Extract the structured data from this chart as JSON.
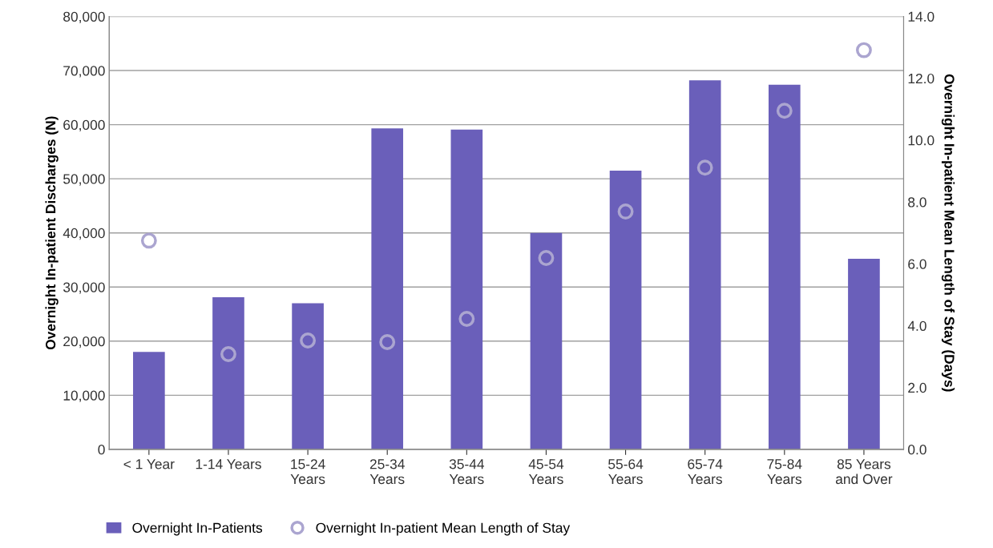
{
  "chart_data": {
    "type": "bar",
    "categories": [
      "< 1 Year",
      "1-14 Years",
      "15-24\nYears",
      "25-34\nYears",
      "35-44\nYears",
      "45-54\nYears",
      "55-64\nYears",
      "65-74\nYears",
      "75-84\nYears",
      "85 Years\nand Over"
    ],
    "ylabel": "Overnight In-patient Discharges (N)",
    "y2label": "Overnight In-patient Mean Length of Stay (Days)",
    "series": [
      {
        "name": "Overnight In-Patients",
        "color": "#6a5fba",
        "values": [
          18000,
          28100,
          27000,
          59300,
          59100,
          40000,
          51500,
          68200,
          67400,
          35200
        ]
      },
      {
        "name": "Overnight In-patient Mean Length of Stay",
        "type": "scatter",
        "axis": "y2",
        "color": "#aba5d0",
        "marker": "circle",
        "values": [
          6.75,
          3.08,
          3.52,
          3.47,
          4.22,
          6.19,
          7.69,
          9.11,
          10.95,
          12.91
        ]
      }
    ],
    "ylim": [
      0,
      80000
    ],
    "yticks": [
      {
        "value": 0,
        "label": "0"
      },
      {
        "value": 10000,
        "label": "10,000"
      },
      {
        "value": 20000,
        "label": "20,000"
      },
      {
        "value": 30000,
        "label": "30,000"
      },
      {
        "value": 40000,
        "label": "40,000"
      },
      {
        "value": 50000,
        "label": "50,000"
      },
      {
        "value": 60000,
        "label": "60,000"
      },
      {
        "value": 70000,
        "label": "70,000"
      },
      {
        "value": 80000,
        "label": "80,000"
      }
    ],
    "y2lim": [
      0,
      14
    ],
    "y2ticks": [
      {
        "value": 0,
        "label": "0.0"
      },
      {
        "value": 2,
        "label": "2.0"
      },
      {
        "value": 4,
        "label": "4.0"
      },
      {
        "value": 6,
        "label": "6.0"
      },
      {
        "value": 8,
        "label": "8.0"
      },
      {
        "value": 10,
        "label": "10.0"
      },
      {
        "value": 12,
        "label": "12.0"
      },
      {
        "value": 14,
        "label": "14.0"
      }
    ],
    "grid": "y",
    "legend": "bottom left"
  }
}
